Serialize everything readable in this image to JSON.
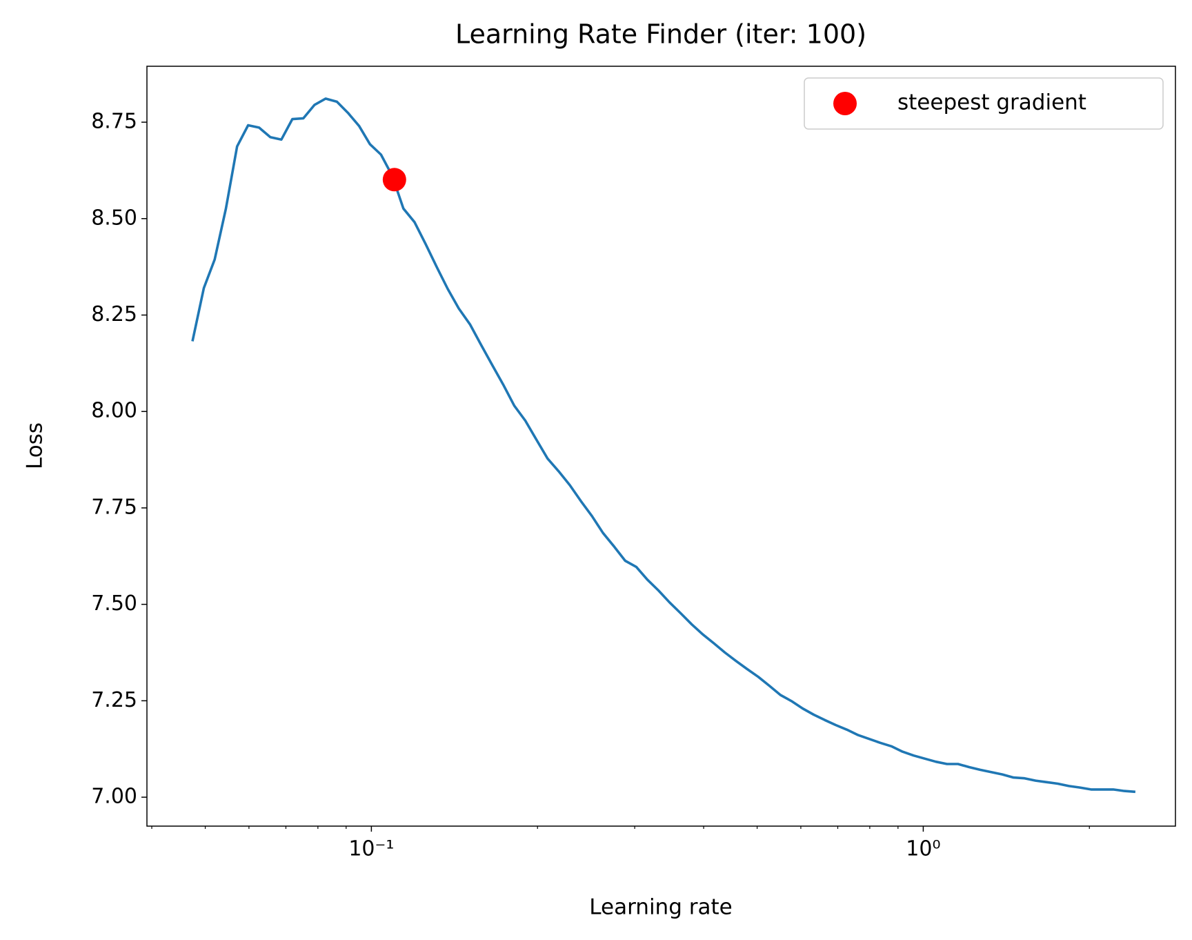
{
  "chart_data": {
    "type": "line",
    "title": "Learning Rate Finder (iter: 100)",
    "xlabel": "Learning rate",
    "ylabel": "Loss",
    "xscale": "log",
    "legend": "upper right",
    "xlim": [
      0.0392,
      2.864
    ],
    "ylim": [
      6.925,
      8.895
    ],
    "xticks": [
      {
        "value": 0.1,
        "label": "10⁻¹"
      },
      {
        "value": 1,
        "label": "10⁰"
      }
    ],
    "xminorticks": [
      0.04,
      0.05,
      0.06,
      0.07,
      0.08,
      0.09,
      0.2,
      0.3,
      0.4,
      0.5,
      0.6,
      0.7,
      0.8,
      0.9,
      2
    ],
    "yticks": [
      {
        "value": 7,
        "label": "7.00"
      },
      {
        "value": 7.25,
        "label": "7.25"
      },
      {
        "value": 7.5,
        "label": "7.50"
      },
      {
        "value": 7.75,
        "label": "7.75"
      },
      {
        "value": 8,
        "label": "8.00"
      },
      {
        "value": 8.25,
        "label": "8.25"
      },
      {
        "value": 8.5,
        "label": "8.50"
      },
      {
        "value": 8.75,
        "label": "8.75"
      }
    ],
    "series": [
      {
        "type": "line",
        "color": "#1f77b4",
        "x": [
          0.0474,
          0.0497,
          0.052,
          0.0545,
          0.0571,
          0.0598,
          0.0626,
          0.0656,
          0.0687,
          0.0719,
          0.0753,
          0.0789,
          0.0826,
          0.0866,
          0.0907,
          0.095,
          0.0994,
          0.1041,
          0.1091,
          0.1143,
          0.1197,
          0.1254,
          0.1313,
          0.1375,
          0.144,
          0.1509,
          0.158,
          0.1655,
          0.1733,
          0.1815,
          0.1901,
          0.1991,
          0.2086,
          0.2184,
          0.2288,
          0.2396,
          0.251,
          0.2628,
          0.2753,
          0.2883,
          0.302,
          0.3163,
          0.3312,
          0.3469,
          0.3634,
          0.3806,
          0.3986,
          0.4175,
          0.4372,
          0.458,
          0.4797,
          0.5024,
          0.5262,
          0.5511,
          0.5772,
          0.6045,
          0.6331,
          0.6631,
          0.6945,
          0.7274,
          0.7621,
          0.7981,
          0.8359,
          0.8755,
          0.917,
          0.9605,
          1.006,
          1.054,
          1.104,
          1.156,
          1.211,
          1.268,
          1.328,
          1.391,
          1.457,
          1.526,
          1.598,
          1.674,
          1.753,
          1.836,
          1.923,
          2.014,
          2.109,
          2.209,
          2.314,
          2.423
        ],
        "values": [
          8.182,
          8.32,
          8.394,
          8.526,
          8.687,
          8.742,
          8.736,
          8.711,
          8.705,
          8.758,
          8.76,
          8.795,
          8.811,
          8.803,
          8.774,
          8.74,
          8.693,
          8.666,
          8.611,
          8.526,
          8.491,
          8.434,
          8.375,
          8.318,
          8.267,
          8.226,
          8.173,
          8.121,
          8.07,
          8.015,
          7.976,
          7.927,
          7.878,
          7.845,
          7.809,
          7.768,
          7.729,
          7.685,
          7.65,
          7.613,
          7.597,
          7.564,
          7.536,
          7.505,
          7.477,
          7.448,
          7.422,
          7.399,
          7.375,
          7.353,
          7.332,
          7.312,
          7.289,
          7.265,
          7.249,
          7.23,
          7.214,
          7.2,
          7.187,
          7.175,
          7.161,
          7.151,
          7.141,
          7.132,
          7.118,
          7.108,
          7.1,
          7.092,
          7.086,
          7.086,
          7.078,
          7.071,
          7.065,
          7.059,
          7.051,
          7.049,
          7.043,
          7.039,
          7.035,
          7.029,
          7.025,
          7.02,
          7.02,
          7.02,
          7.016,
          7.014
        ]
      },
      {
        "type": "scatter",
        "name": "steepest gradient",
        "color": "#ff0000",
        "x": [
          0.1101
        ],
        "values": [
          8.601
        ]
      }
    ]
  }
}
